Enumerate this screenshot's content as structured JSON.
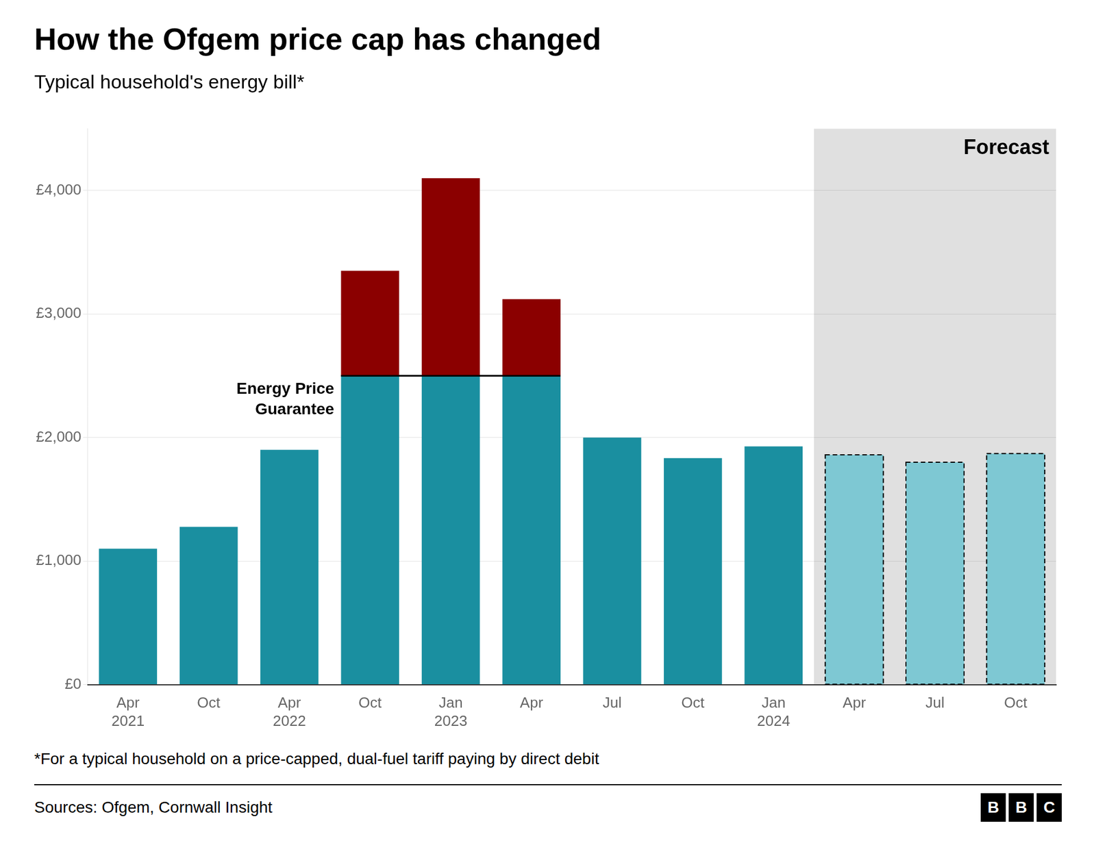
{
  "chart_data": {
    "type": "bar",
    "title": "How the Ofgem price cap has changed",
    "subtitle": "Typical household's energy bill*",
    "footnote": "*For a typical household on a price-capped, dual-fuel tariff paying by direct debit",
    "source": "Sources: Ofgem, Cornwall Insight",
    "categories": [
      "Apr\n2021",
      "Oct",
      "Apr\n2022",
      "Oct",
      "Jan\n2023",
      "Apr",
      "Jul",
      "Oct",
      "Jan\n2024",
      "Apr",
      "Jul",
      "Oct"
    ],
    "series": [
      {
        "colors": [
          "#1a8fa0",
          "#1a8fa0",
          "#1a8fa0",
          "#1a8fa0",
          "#1a8fa0",
          "#1a8fa0",
          "#1a8fa0",
          "#1a8fa0",
          "#1a8fa0",
          "#7ec8d3",
          "#7ec8d3",
          "#7ec8d3"
        ],
        "values": [
          1100,
          1277,
          1900,
          2500,
          2500,
          2500,
          2000,
          1834,
          1928,
          1860,
          1800,
          1870
        ]
      },
      {
        "color": "#8b0000",
        "values": [
          0,
          0,
          0,
          850,
          1600,
          620,
          0,
          0,
          0,
          0,
          0,
          0
        ]
      }
    ],
    "stacked": true,
    "grid": true,
    "ylim": [
      0,
      4500
    ],
    "yticks": [
      {
        "value": 0,
        "label": "£0"
      },
      {
        "value": 1000,
        "label": "£1,000"
      },
      {
        "value": 2000,
        "label": "£2,000"
      },
      {
        "value": 3000,
        "label": "£3,000"
      },
      {
        "value": 4000,
        "label": "£4,000"
      }
    ],
    "annotations": [
      {
        "kind": "line",
        "text": "Energy Price\nGuarantee",
        "y": 2500,
        "from_index": 3,
        "to_index": 5
      },
      {
        "kind": "shaded_region",
        "text": "Forecast",
        "from_index": 9,
        "to_index": 11,
        "color": "#e0e0e0"
      },
      {
        "kind": "logo",
        "text": "BBC"
      }
    ]
  }
}
